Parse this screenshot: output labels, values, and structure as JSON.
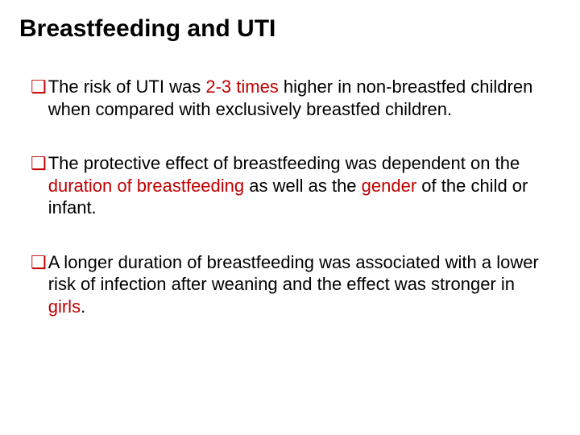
{
  "colors": {
    "highlight": "#c00000",
    "body_text": "#000000",
    "background": "#ffffff"
  },
  "fontsizes": {
    "title": 30,
    "body": 22
  },
  "title": "Breastfeeding and UTI",
  "bullets": [
    {
      "segments": [
        {
          "text": "The risk of UTI was ",
          "hl": false
        },
        {
          "text": "2-3 times",
          "hl": true
        },
        {
          "text": " higher in non-breastfed children when compared with exclusively breastfed children.",
          "hl": false
        }
      ]
    },
    {
      "segments": [
        {
          "text": "The protective effect of breastfeeding was dependent on the ",
          "hl": false
        },
        {
          "text": "duration of breastfeeding",
          "hl": true
        },
        {
          "text": " as well as the ",
          "hl": false
        },
        {
          "text": "gender",
          "hl": true
        },
        {
          "text": " of the child or infant.",
          "hl": false
        }
      ]
    },
    {
      "segments": [
        {
          "text": "A longer duration of breastfeeding was associated with a lower risk of infection after weaning and the effect was stronger in ",
          "hl": false
        },
        {
          "text": "girls",
          "hl": true
        },
        {
          "text": ".",
          "hl": false
        }
      ]
    }
  ]
}
